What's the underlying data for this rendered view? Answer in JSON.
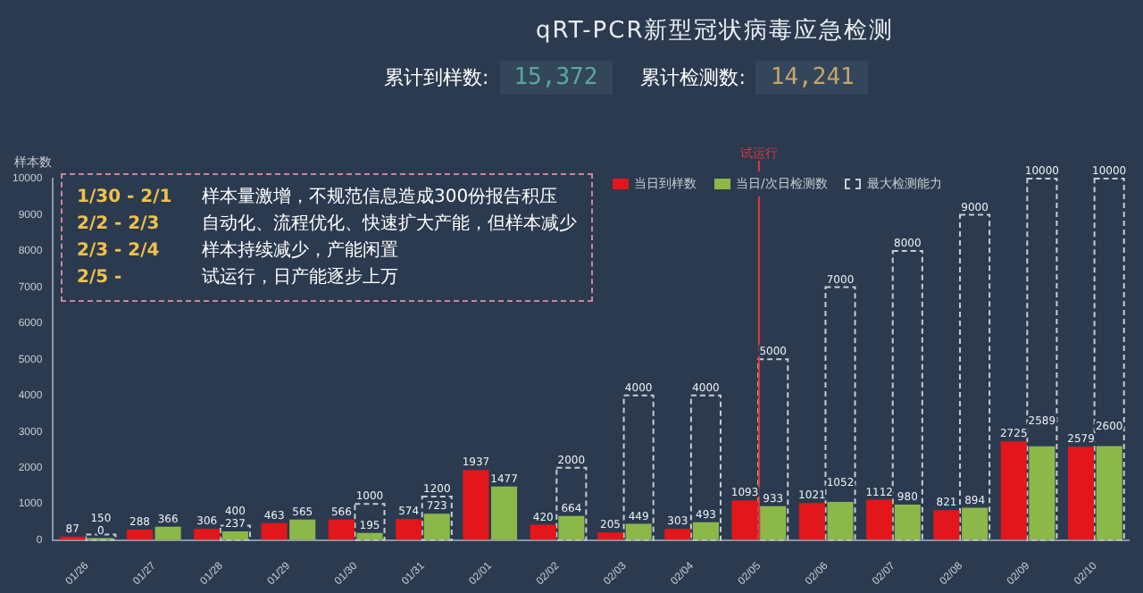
{
  "chart_data": {
    "type": "bar",
    "title": "qRT-PCR新型冠状病毒应急检测",
    "ylabel": "样本数",
    "categories": [
      "01/26",
      "01/27",
      "01/28",
      "01/29",
      "01/30",
      "01/31",
      "02/01",
      "02/02",
      "02/03",
      "02/04",
      "02/05",
      "02/06",
      "02/07",
      "02/08",
      "02/09",
      "02/10"
    ],
    "series": [
      {
        "name": "当日到样数",
        "color": "#e3171b",
        "values": [
          87,
          288,
          306,
          463,
          566,
          574,
          1937,
          420,
          205,
          303,
          1093,
          1021,
          1112,
          821,
          2725,
          2579
        ]
      },
      {
        "name": "当日/次日检测数",
        "color": "#8cb84a",
        "values": [
          0,
          366,
          237,
          565,
          195,
          723,
          1477,
          664,
          449,
          493,
          933,
          1052,
          980,
          894,
          2589,
          2600
        ]
      },
      {
        "name": "最大检测能力",
        "color": "#c8ccd2",
        "line_style": "dashed",
        "values": [
          150,
          null,
          400,
          null,
          1000,
          1200,
          null,
          2000,
          4000,
          4000,
          5000,
          7000,
          8000,
          9000,
          10000,
          10000
        ]
      }
    ],
    "ylim": [
      0,
      10000
    ],
    "yticks": [
      0,
      1000,
      2000,
      3000,
      4000,
      5000,
      6000,
      7000,
      8000,
      9000,
      10000
    ],
    "grid": false,
    "legend": "top right",
    "data_labels": true,
    "ref_lines": [
      {
        "axis": "x",
        "value": "02/05",
        "label": "试运行",
        "color": "#e0393e"
      }
    ],
    "annotations": [
      "累计到样数: 15,372",
      "累计检测数: 14,241",
      "1/30 - 2/1  样本量激增，不规范信息造成300份报告积压",
      "2/2 - 2/3  自动化、流程优化、快速扩大产能，但样本减少",
      "2/3 - 2/4  样本持续减少，产能闲置",
      "2/5 -  试运行，日产能逐步上万"
    ]
  }
}
